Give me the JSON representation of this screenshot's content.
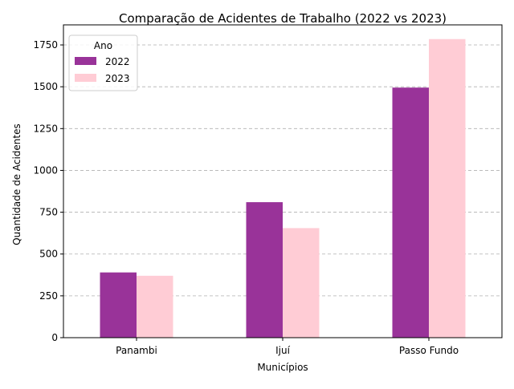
{
  "chart_data": {
    "type": "bar",
    "title": "Comparação de Acidentes de Trabalho (2022 vs 2023)",
    "xlabel": "Municípios",
    "ylabel": "Quantidade de Acidentes",
    "categories": [
      "Panambi",
      "Ijuí",
      "Passo Fundo"
    ],
    "series": [
      {
        "name": "2022",
        "values": [
          390,
          810,
          1495
        ],
        "color": "#993399"
      },
      {
        "name": "2023",
        "values": [
          370,
          655,
          1785
        ],
        "color": "#ffccd5"
      }
    ],
    "ylim": [
      0,
      1870
    ],
    "yticks": [
      0,
      250,
      500,
      750,
      1000,
      1250,
      1500,
      1750
    ],
    "grid": "y-dashed",
    "legend": {
      "title": "Ano",
      "placement": "top-left"
    }
  }
}
